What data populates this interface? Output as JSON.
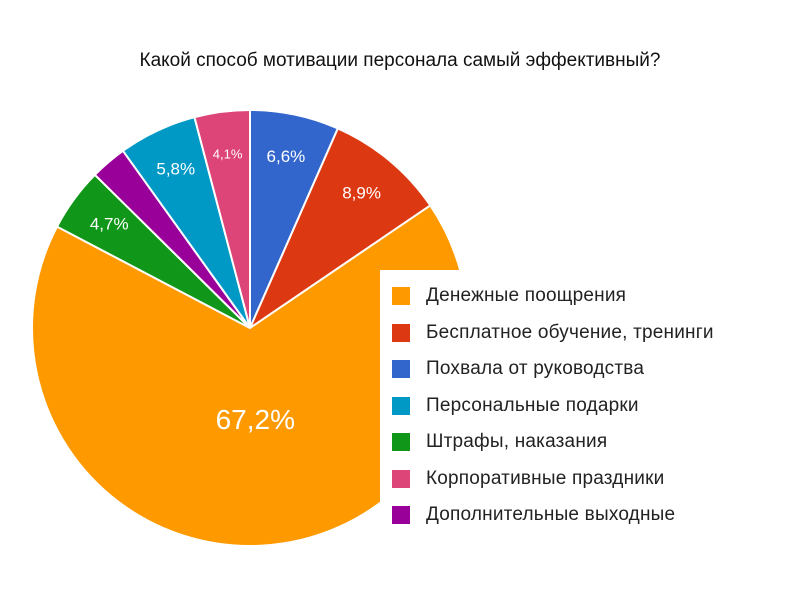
{
  "chart_data": {
    "type": "pie",
    "title": "Какой способ мотивации персонала самый эффективный?",
    "slices": [
      {
        "label": "Денежные поощрения",
        "value": 67.2,
        "display": "67,2%",
        "color": "#ff9900"
      },
      {
        "label": "Бесплатное обучение, тренинги",
        "value": 8.9,
        "display": "8,9%",
        "color": "#dc3912"
      },
      {
        "label": "Похвала от руководства",
        "value": 6.6,
        "display": "6,6%",
        "color": "#3366cc"
      },
      {
        "label": "Персональные подарки",
        "value": 5.8,
        "display": "5,8%",
        "color": "#0099c6"
      },
      {
        "label": "Штрафы, наказания",
        "value": 4.7,
        "display": "4,7%",
        "color": "#109618"
      },
      {
        "label": "Корпоративные праздники",
        "value": 4.1,
        "display": "4,1%",
        "color": "#dd4477"
      },
      {
        "label": "Дополнительные выходные",
        "value": 2.7,
        "display": "",
        "color": "#990099"
      }
    ],
    "draw_order": [
      2,
      1,
      0,
      4,
      6,
      3,
      5
    ],
    "legend_position": "right"
  }
}
